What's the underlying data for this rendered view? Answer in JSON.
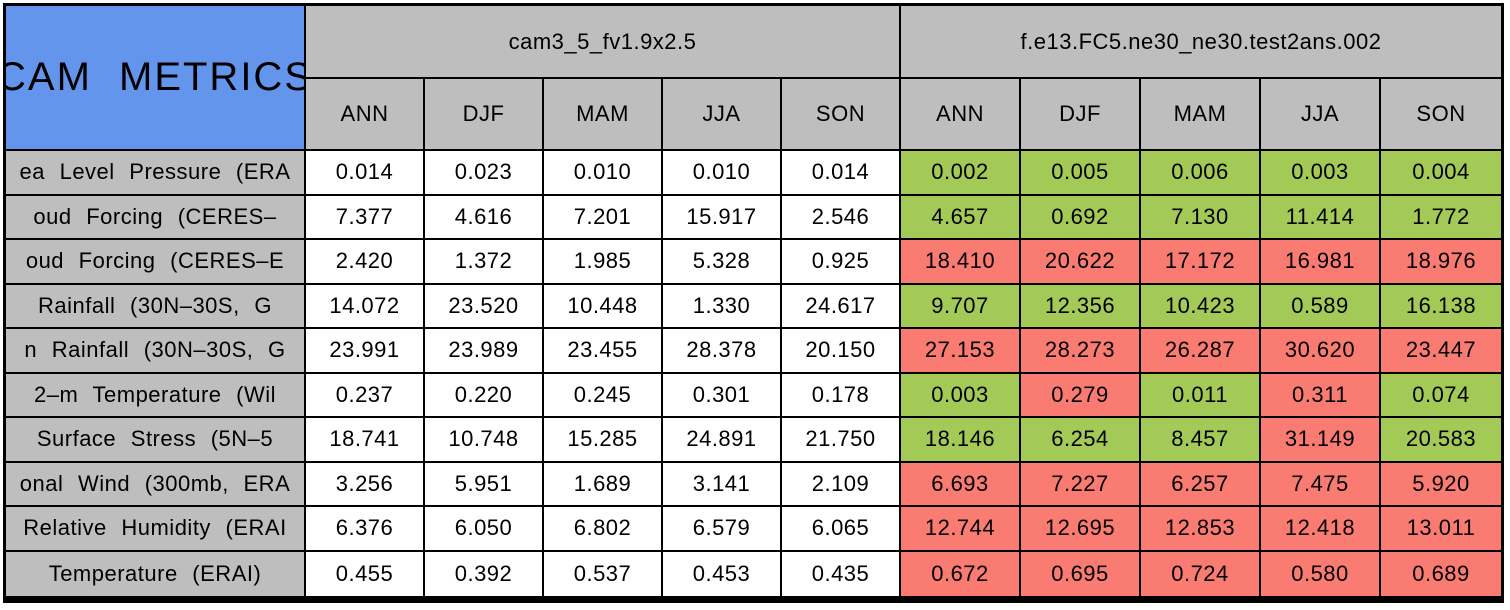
{
  "title": "CAM METRICS",
  "colors": {
    "header_blue": "#6495ED",
    "header_gray": "#BEBEBE",
    "better_green": "#A3C957",
    "worse_red": "#F97B72",
    "border": "#000000"
  },
  "chart_data": {
    "type": "table",
    "title": "CAM METRICS",
    "groups": [
      {
        "name": "cam3_5_fv1.9x2.5",
        "seasons": [
          "ANN",
          "DJF",
          "MAM",
          "JJA",
          "SON"
        ]
      },
      {
        "name": "f.e13.FC5.ne30_ne30.test2ans.002",
        "seasons": [
          "ANN",
          "DJF",
          "MAM",
          "JJA",
          "SON"
        ]
      }
    ],
    "cell_color_values": {
      "green": "#A3C957",
      "red": "#F97B72"
    },
    "rows": [
      {
        "label": "ea Level Pressure (ERA",
        "values_1": [
          "0.014",
          "0.023",
          "0.010",
          "0.010",
          "0.014"
        ],
        "values_2": [
          "0.002",
          "0.005",
          "0.006",
          "0.003",
          "0.004"
        ],
        "colors_2": [
          "green",
          "green",
          "green",
          "green",
          "green"
        ]
      },
      {
        "label": "oud Forcing (CERES–",
        "values_1": [
          "7.377",
          "4.616",
          "7.201",
          "15.917",
          "2.546"
        ],
        "values_2": [
          "4.657",
          "0.692",
          "7.130",
          "11.414",
          "1.772"
        ],
        "colors_2": [
          "green",
          "green",
          "green",
          "green",
          "green"
        ]
      },
      {
        "label": "oud Forcing (CERES–E",
        "values_1": [
          "2.420",
          "1.372",
          "1.985",
          "5.328",
          "0.925"
        ],
        "values_2": [
          "18.410",
          "20.622",
          "17.172",
          "16.981",
          "18.976"
        ],
        "colors_2": [
          "red",
          "red",
          "red",
          "red",
          "red"
        ]
      },
      {
        "label": "Rainfall (30N–30S, G",
        "values_1": [
          "14.072",
          "23.520",
          "10.448",
          "1.330",
          "24.617"
        ],
        "values_2": [
          "9.707",
          "12.356",
          "10.423",
          "0.589",
          "16.138"
        ],
        "colors_2": [
          "green",
          "green",
          "green",
          "green",
          "green"
        ]
      },
      {
        "label": "n Rainfall (30N–30S, G",
        "values_1": [
          "23.991",
          "23.989",
          "23.455",
          "28.378",
          "20.150"
        ],
        "values_2": [
          "27.153",
          "28.273",
          "26.287",
          "30.620",
          "23.447"
        ],
        "colors_2": [
          "red",
          "red",
          "red",
          "red",
          "red"
        ]
      },
      {
        "label": "2–m Temperature (Wil",
        "values_1": [
          "0.237",
          "0.220",
          "0.245",
          "0.301",
          "0.178"
        ],
        "values_2": [
          "0.003",
          "0.279",
          "0.011",
          "0.311",
          "0.074"
        ],
        "colors_2": [
          "green",
          "red",
          "green",
          "red",
          "green"
        ]
      },
      {
        "label": "Surface Stress (5N–5",
        "values_1": [
          "18.741",
          "10.748",
          "15.285",
          "24.891",
          "21.750"
        ],
        "values_2": [
          "18.146",
          "6.254",
          "8.457",
          "31.149",
          "20.583"
        ],
        "colors_2": [
          "green",
          "green",
          "green",
          "red",
          "green"
        ]
      },
      {
        "label": "onal Wind (300mb, ERA",
        "values_1": [
          "3.256",
          "5.951",
          "1.689",
          "3.141",
          "2.109"
        ],
        "values_2": [
          "6.693",
          "7.227",
          "6.257",
          "7.475",
          "5.920"
        ],
        "colors_2": [
          "red",
          "red",
          "red",
          "red",
          "red"
        ]
      },
      {
        "label": "Relative Humidity (ERAI",
        "values_1": [
          "6.376",
          "6.050",
          "6.802",
          "6.579",
          "6.065"
        ],
        "values_2": [
          "12.744",
          "12.695",
          "12.853",
          "12.418",
          "13.011"
        ],
        "colors_2": [
          "red",
          "red",
          "red",
          "red",
          "red"
        ]
      },
      {
        "label": "Temperature (ERAI)",
        "values_1": [
          "0.455",
          "0.392",
          "0.537",
          "0.453",
          "0.435"
        ],
        "values_2": [
          "0.672",
          "0.695",
          "0.724",
          "0.580",
          "0.689"
        ],
        "colors_2": [
          "red",
          "red",
          "red",
          "red",
          "red"
        ]
      }
    ]
  }
}
